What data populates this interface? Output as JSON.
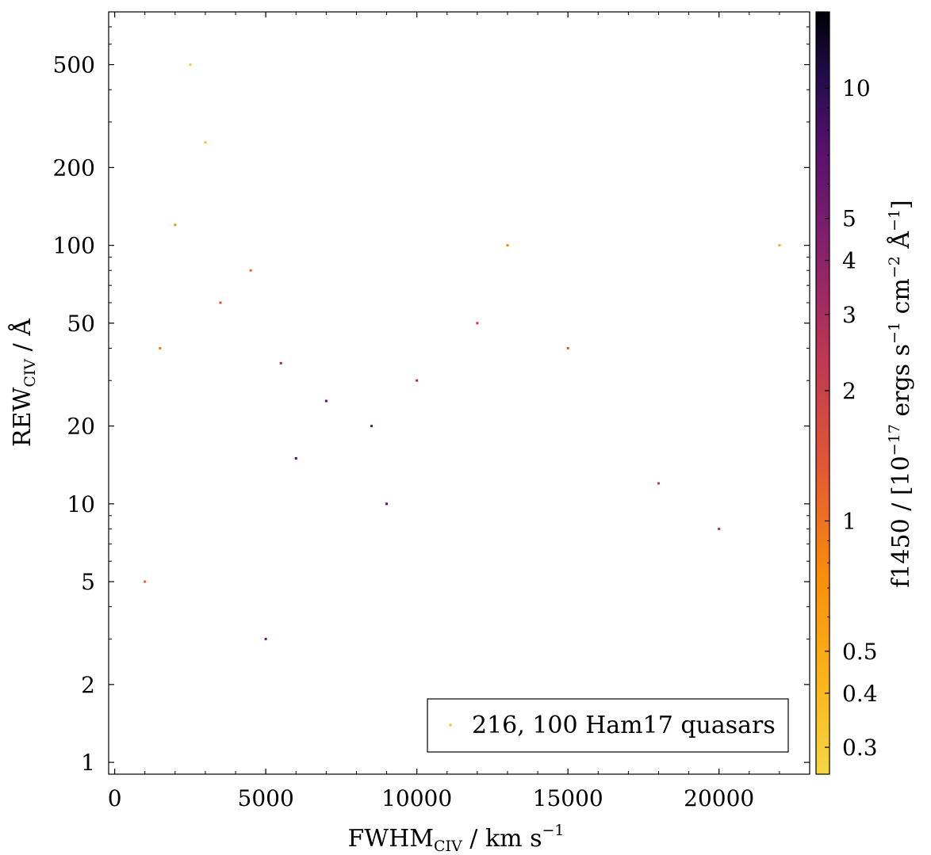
{
  "chart_data": {
    "type": "scatter",
    "title": "",
    "xlabel": {
      "main": "FWHM",
      "sub": "CIV",
      "rest": " / km s",
      "sup": "−1"
    },
    "ylabel": {
      "main": "REW",
      "sub": "CIV",
      "rest": " / Å"
    },
    "xlim": [
      -200,
      23000
    ],
    "ylim": [
      0.9,
      800
    ],
    "yscale": "log",
    "x_ticks": [
      {
        "value": 0,
        "label": "0"
      },
      {
        "value": 5000,
        "label": "5000"
      },
      {
        "value": 10000,
        "label": "10000"
      },
      {
        "value": 15000,
        "label": "15000"
      },
      {
        "value": 20000,
        "label": "20000"
      }
    ],
    "y_ticks": [
      {
        "value": 1,
        "label": "1"
      },
      {
        "value": 2,
        "label": "2"
      },
      {
        "value": 5,
        "label": "5"
      },
      {
        "value": 10,
        "label": "10"
      },
      {
        "value": 20,
        "label": "20"
      },
      {
        "value": 50,
        "label": "50"
      },
      {
        "value": 100,
        "label": "100"
      },
      {
        "value": 200,
        "label": "200"
      },
      {
        "value": 500,
        "label": "500"
      }
    ],
    "legend": {
      "text": "216, 100  Ham17 quasars",
      "position": "bottom-right"
    },
    "colorbar": {
      "label": {
        "main": "f1450 / [10",
        "sup1": "−17",
        "mid1": " ergs s",
        "sup2": "−1",
        "mid2": " cm",
        "sup3": "−2",
        "mid3": " Å",
        "sup4": "−1",
        "end": "]"
      },
      "scale": "log",
      "range": [
        0.26,
        15
      ],
      "colormap": "inferno",
      "ticks": [
        {
          "value": 0.3,
          "label": "0.3"
        },
        {
          "value": 0.4,
          "label": "0.4"
        },
        {
          "value": 0.5,
          "label": "0.5"
        },
        {
          "value": 1,
          "label": "1"
        },
        {
          "value": 2,
          "label": "2"
        },
        {
          "value": 3,
          "label": "3"
        },
        {
          "value": 4,
          "label": "4"
        },
        {
          "value": 5,
          "label": "5"
        },
        {
          "value": 10,
          "label": "10"
        }
      ]
    },
    "series": [
      {
        "points": [
          [
            3500,
            60,
            1.0
          ],
          [
            5500,
            35,
            2.5
          ],
          [
            7000,
            25,
            5.0
          ],
          [
            2000,
            120,
            0.5
          ],
          [
            3000,
            250,
            0.35
          ],
          [
            8500,
            20,
            4.0
          ],
          [
            10000,
            30,
            2.0
          ],
          [
            4500,
            80,
            0.8
          ],
          [
            6000,
            15,
            6.0
          ],
          [
            1500,
            40,
            0.7
          ],
          [
            12000,
            50,
            1.5
          ],
          [
            15000,
            40,
            1.0
          ],
          [
            20000,
            8,
            2.0
          ],
          [
            22000,
            100,
            0.4
          ],
          [
            2500,
            500,
            0.3
          ],
          [
            9000,
            10,
            5.0
          ],
          [
            1000,
            5,
            0.8
          ],
          [
            5000,
            3,
            4.0
          ],
          [
            18000,
            12,
            1.5
          ],
          [
            13000,
            100,
            0.6
          ]
        ]
      }
    ]
  }
}
